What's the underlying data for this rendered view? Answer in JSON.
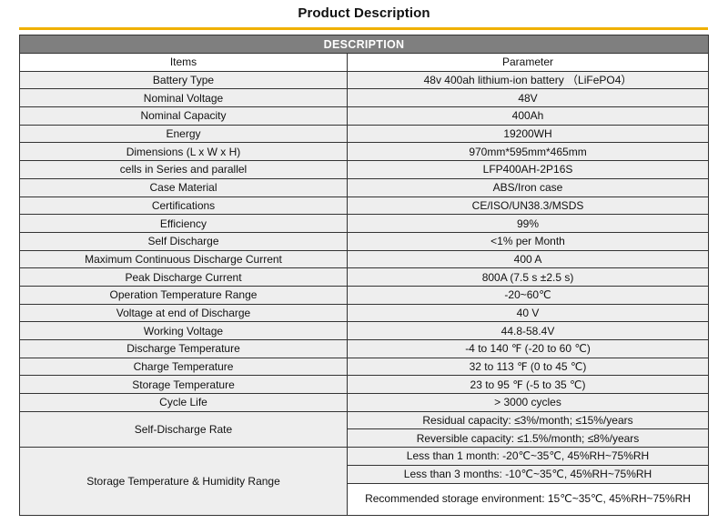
{
  "page": {
    "title": "Product Description",
    "accent_color": "#f0b000",
    "banner_color": "#7f7f7f"
  },
  "table": {
    "banner": "DESCRIPTION",
    "header": {
      "items": "Items",
      "parameter": "Parameter"
    },
    "rows": [
      {
        "item": "Battery Type",
        "value": "48v 400ah lithium-ion battery （LiFePO4）"
      },
      {
        "item": "Nominal Voltage",
        "value": "48V"
      },
      {
        "item": "Nominal Capacity",
        "value": "400Ah"
      },
      {
        "item": "Energy",
        "value": "19200WH"
      },
      {
        "item": "Dimensions (L x W x H)",
        "value": "970mm*595mm*465mm"
      },
      {
        "item": "cells in Series and parallel",
        "value": "LFP400AH-2P16S"
      },
      {
        "item": "Case Material",
        "value": "ABS/Iron case"
      },
      {
        "item": "Certifications",
        "value": "CE/ISO/UN38.3/MSDS"
      },
      {
        "item": "Efficiency",
        "value": "99%"
      },
      {
        "item": "Self Discharge",
        "value": "<1% per Month"
      },
      {
        "item": "Maximum Continuous Discharge Current",
        "value": "400 A"
      },
      {
        "item": "Peak Discharge Current",
        "value": "800A (7.5 s ±2.5 s)"
      },
      {
        "item": "Operation Temperature Range",
        "value": "-20~60℃"
      },
      {
        "item": "Voltage at end of Discharge",
        "value": "40 V"
      },
      {
        "item": "Working Voltage",
        "value": "44.8-58.4V"
      },
      {
        "item": "Discharge Temperature",
        "value": "-4 to 140 ℉ (-20 to 60 ℃)"
      },
      {
        "item": "Charge Temperature",
        "value": "32 to 113 ℉ (0 to 45 ℃)"
      },
      {
        "item": "Storage Temperature",
        "value": "23 to 95 ℉ (-5 to 35 ℃)"
      },
      {
        "item": "Cycle Life",
        "value": "> 3000 cycles"
      }
    ],
    "self_discharge_rate": {
      "item": "Self-Discharge Rate",
      "values": [
        "Residual capacity: ≤3%/month; ≤15%/years",
        "Reversible capacity: ≤1.5%/month; ≤8%/years"
      ]
    },
    "storage_humidity": {
      "item": "Storage Temperature & Humidity Range",
      "values": [
        "Less than 1 month: -20℃~35℃, 45%RH~75%RH",
        "Less than 3 months: -10℃~35℃, 45%RH~75%RH",
        "Recommended storage environment: 15℃~35℃, 45%RH~75%RH"
      ]
    }
  }
}
